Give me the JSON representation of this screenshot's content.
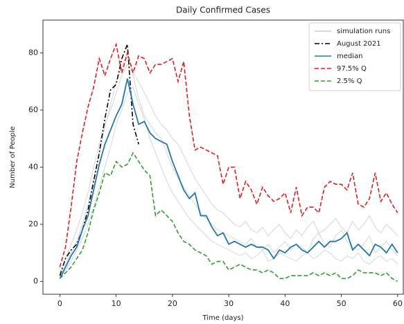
{
  "chart_data": {
    "type": "line",
    "title": "Daily Confirmed Cases",
    "xlabel": "Time (days)",
    "ylabel": "Number of People",
    "x": [
      0,
      1,
      2,
      3,
      4,
      5,
      6,
      7,
      8,
      9,
      10,
      11,
      12,
      13,
      14,
      15,
      16,
      17,
      18,
      19,
      20,
      21,
      22,
      23,
      24,
      25,
      26,
      27,
      28,
      29,
      30,
      31,
      32,
      33,
      34,
      35,
      36,
      37,
      38,
      39,
      40,
      41,
      42,
      43,
      44,
      45,
      46,
      47,
      48,
      49,
      50,
      51,
      52,
      53,
      54,
      55,
      56,
      57,
      58,
      59,
      60
    ],
    "xlim": [
      -3,
      61
    ],
    "xticks": [
      0,
      10,
      20,
      30,
      40,
      50,
      60
    ],
    "ylim": [
      -4.5,
      91.5
    ],
    "yticks": [
      0,
      20,
      40,
      60,
      80
    ],
    "legend": "upper right",
    "runs": {
      "name": "simulation runs",
      "color": "#cccccc",
      "values": [
        [
          2,
          6,
          10,
          14,
          20,
          27,
          36,
          45,
          54,
          62,
          70,
          75,
          80,
          72,
          64,
          58,
          55,
          52,
          50,
          45,
          40,
          36,
          33,
          30,
          27,
          24,
          22,
          20,
          18,
          17,
          16,
          15,
          14,
          13,
          15,
          12,
          11,
          13,
          10,
          12,
          14,
          11,
          13,
          12,
          10,
          15,
          17,
          13,
          12,
          16,
          18,
          14,
          12,
          11,
          13,
          16,
          10,
          12,
          14,
          11,
          9
        ],
        [
          1,
          4,
          7,
          11,
          15,
          20,
          26,
          33,
          40,
          47,
          55,
          60,
          66,
          68,
          62,
          57,
          50,
          45,
          40,
          35,
          31,
          28,
          25,
          22,
          20,
          18,
          16,
          14,
          13,
          12,
          11,
          10,
          9,
          10,
          8,
          9,
          11,
          7,
          8,
          10,
          9,
          8,
          7,
          9,
          10,
          8,
          9,
          11,
          10,
          8,
          7,
          9,
          8,
          10,
          7,
          6,
          8,
          9,
          7,
          8,
          6
        ],
        [
          3,
          8,
          13,
          18,
          24,
          31,
          40,
          48,
          55,
          60,
          66,
          72,
          76,
          73,
          70,
          66,
          62,
          58,
          55,
          53,
          50,
          48,
          44,
          40,
          36,
          33,
          30,
          27,
          25,
          24,
          22,
          20,
          19,
          21,
          18,
          17,
          19,
          16,
          18,
          20,
          17,
          15,
          18,
          16,
          19,
          21,
          17,
          18,
          20,
          22,
          19,
          17,
          21,
          18,
          20,
          23,
          19,
          17,
          20,
          18,
          16
        ]
      ]
    },
    "series": [
      {
        "name": "August 2021",
        "color": "#000000",
        "style": "dashdot",
        "values": [
          2,
          8,
          11,
          13,
          18,
          25,
          35,
          45,
          57,
          67,
          69,
          78,
          83,
          55,
          48,
          null,
          null,
          null,
          null,
          null,
          null,
          null,
          null,
          null,
          null,
          null,
          null,
          null,
          null,
          null,
          null,
          null,
          null,
          null,
          null,
          null,
          null,
          null,
          null,
          null,
          null,
          null,
          null,
          null,
          null,
          null,
          null,
          null,
          null,
          null,
          null,
          null,
          null,
          null,
          null,
          null,
          null,
          null,
          null,
          null,
          null
        ]
      },
      {
        "name": "median",
        "color": "#1f77b4",
        "style": "solid",
        "values": [
          1,
          5,
          9,
          12,
          18,
          23,
          32,
          41,
          48,
          53,
          58,
          62,
          71,
          62,
          55,
          56,
          52,
          50,
          49,
          48,
          42,
          37,
          32,
          29,
          31,
          23,
          23,
          19,
          16,
          17,
          13,
          14,
          13,
          12,
          13,
          12,
          12,
          11,
          8,
          11,
          10,
          12,
          13,
          11,
          10,
          12,
          14,
          12,
          14,
          14,
          15,
          17,
          11,
          13,
          11,
          9,
          13,
          12,
          10,
          13,
          10
        ]
      },
      {
        "name": "97.5% Q",
        "color": "#e8191a",
        "style": "dashed",
        "values": [
          5,
          12,
          26,
          42,
          52,
          61,
          68,
          78,
          72,
          78,
          83,
          73,
          80,
          73,
          79,
          78,
          73,
          76,
          76,
          77,
          78,
          70,
          77,
          58,
          46,
          47,
          46,
          45,
          44,
          34,
          40,
          40,
          29,
          35,
          32,
          27,
          33,
          30,
          28,
          29,
          31,
          24,
          33,
          23,
          26,
          26,
          24,
          33,
          35,
          34,
          34,
          32,
          38,
          27,
          26,
          29,
          38,
          28,
          31,
          27,
          24
        ]
      },
      {
        "name": "2.5% Q",
        "color": "#2ca02c",
        "style": "dashed",
        "values": [
          1,
          3,
          5,
          8,
          11,
          17,
          25,
          31,
          38,
          37,
          42,
          40,
          41,
          45,
          42,
          39,
          37,
          23,
          25,
          23,
          21,
          17,
          14,
          13,
          11,
          10,
          9,
          6,
          7,
          7,
          4,
          5,
          6,
          5,
          4,
          4,
          3,
          4,
          3,
          1,
          1,
          2,
          2,
          2,
          2,
          3,
          2,
          3,
          2,
          3,
          1,
          1,
          2,
          4,
          3,
          3,
          3,
          2,
          3,
          1,
          0
        ]
      }
    ]
  }
}
